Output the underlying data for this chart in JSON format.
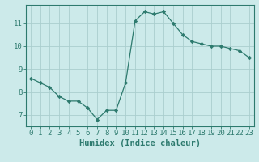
{
  "x": [
    0,
    1,
    2,
    3,
    4,
    5,
    6,
    7,
    8,
    9,
    10,
    11,
    12,
    13,
    14,
    15,
    16,
    17,
    18,
    19,
    20,
    21,
    22,
    23
  ],
  "y": [
    8.6,
    8.4,
    8.2,
    7.8,
    7.6,
    7.6,
    7.3,
    6.8,
    7.2,
    7.2,
    8.4,
    11.1,
    11.5,
    11.4,
    11.5,
    11.0,
    10.5,
    10.2,
    10.1,
    10.0,
    10.0,
    9.9,
    9.8,
    9.5
  ],
  "line_color": "#2d7a6e",
  "marker": "D",
  "marker_size": 2.2,
  "bg_color": "#cceaea",
  "grid_color": "#aacece",
  "axis_color": "#2d7a6e",
  "xlabel": "Humidex (Indice chaleur)",
  "xlim": [
    -0.5,
    23.5
  ],
  "ylim": [
    6.5,
    11.8
  ],
  "yticks": [
    7,
    8,
    9,
    10,
    11
  ],
  "xticks": [
    0,
    1,
    2,
    3,
    4,
    5,
    6,
    7,
    8,
    9,
    10,
    11,
    12,
    13,
    14,
    15,
    16,
    17,
    18,
    19,
    20,
    21,
    22,
    23
  ],
  "tick_fontsize": 6.5,
  "xlabel_fontsize": 7.5
}
